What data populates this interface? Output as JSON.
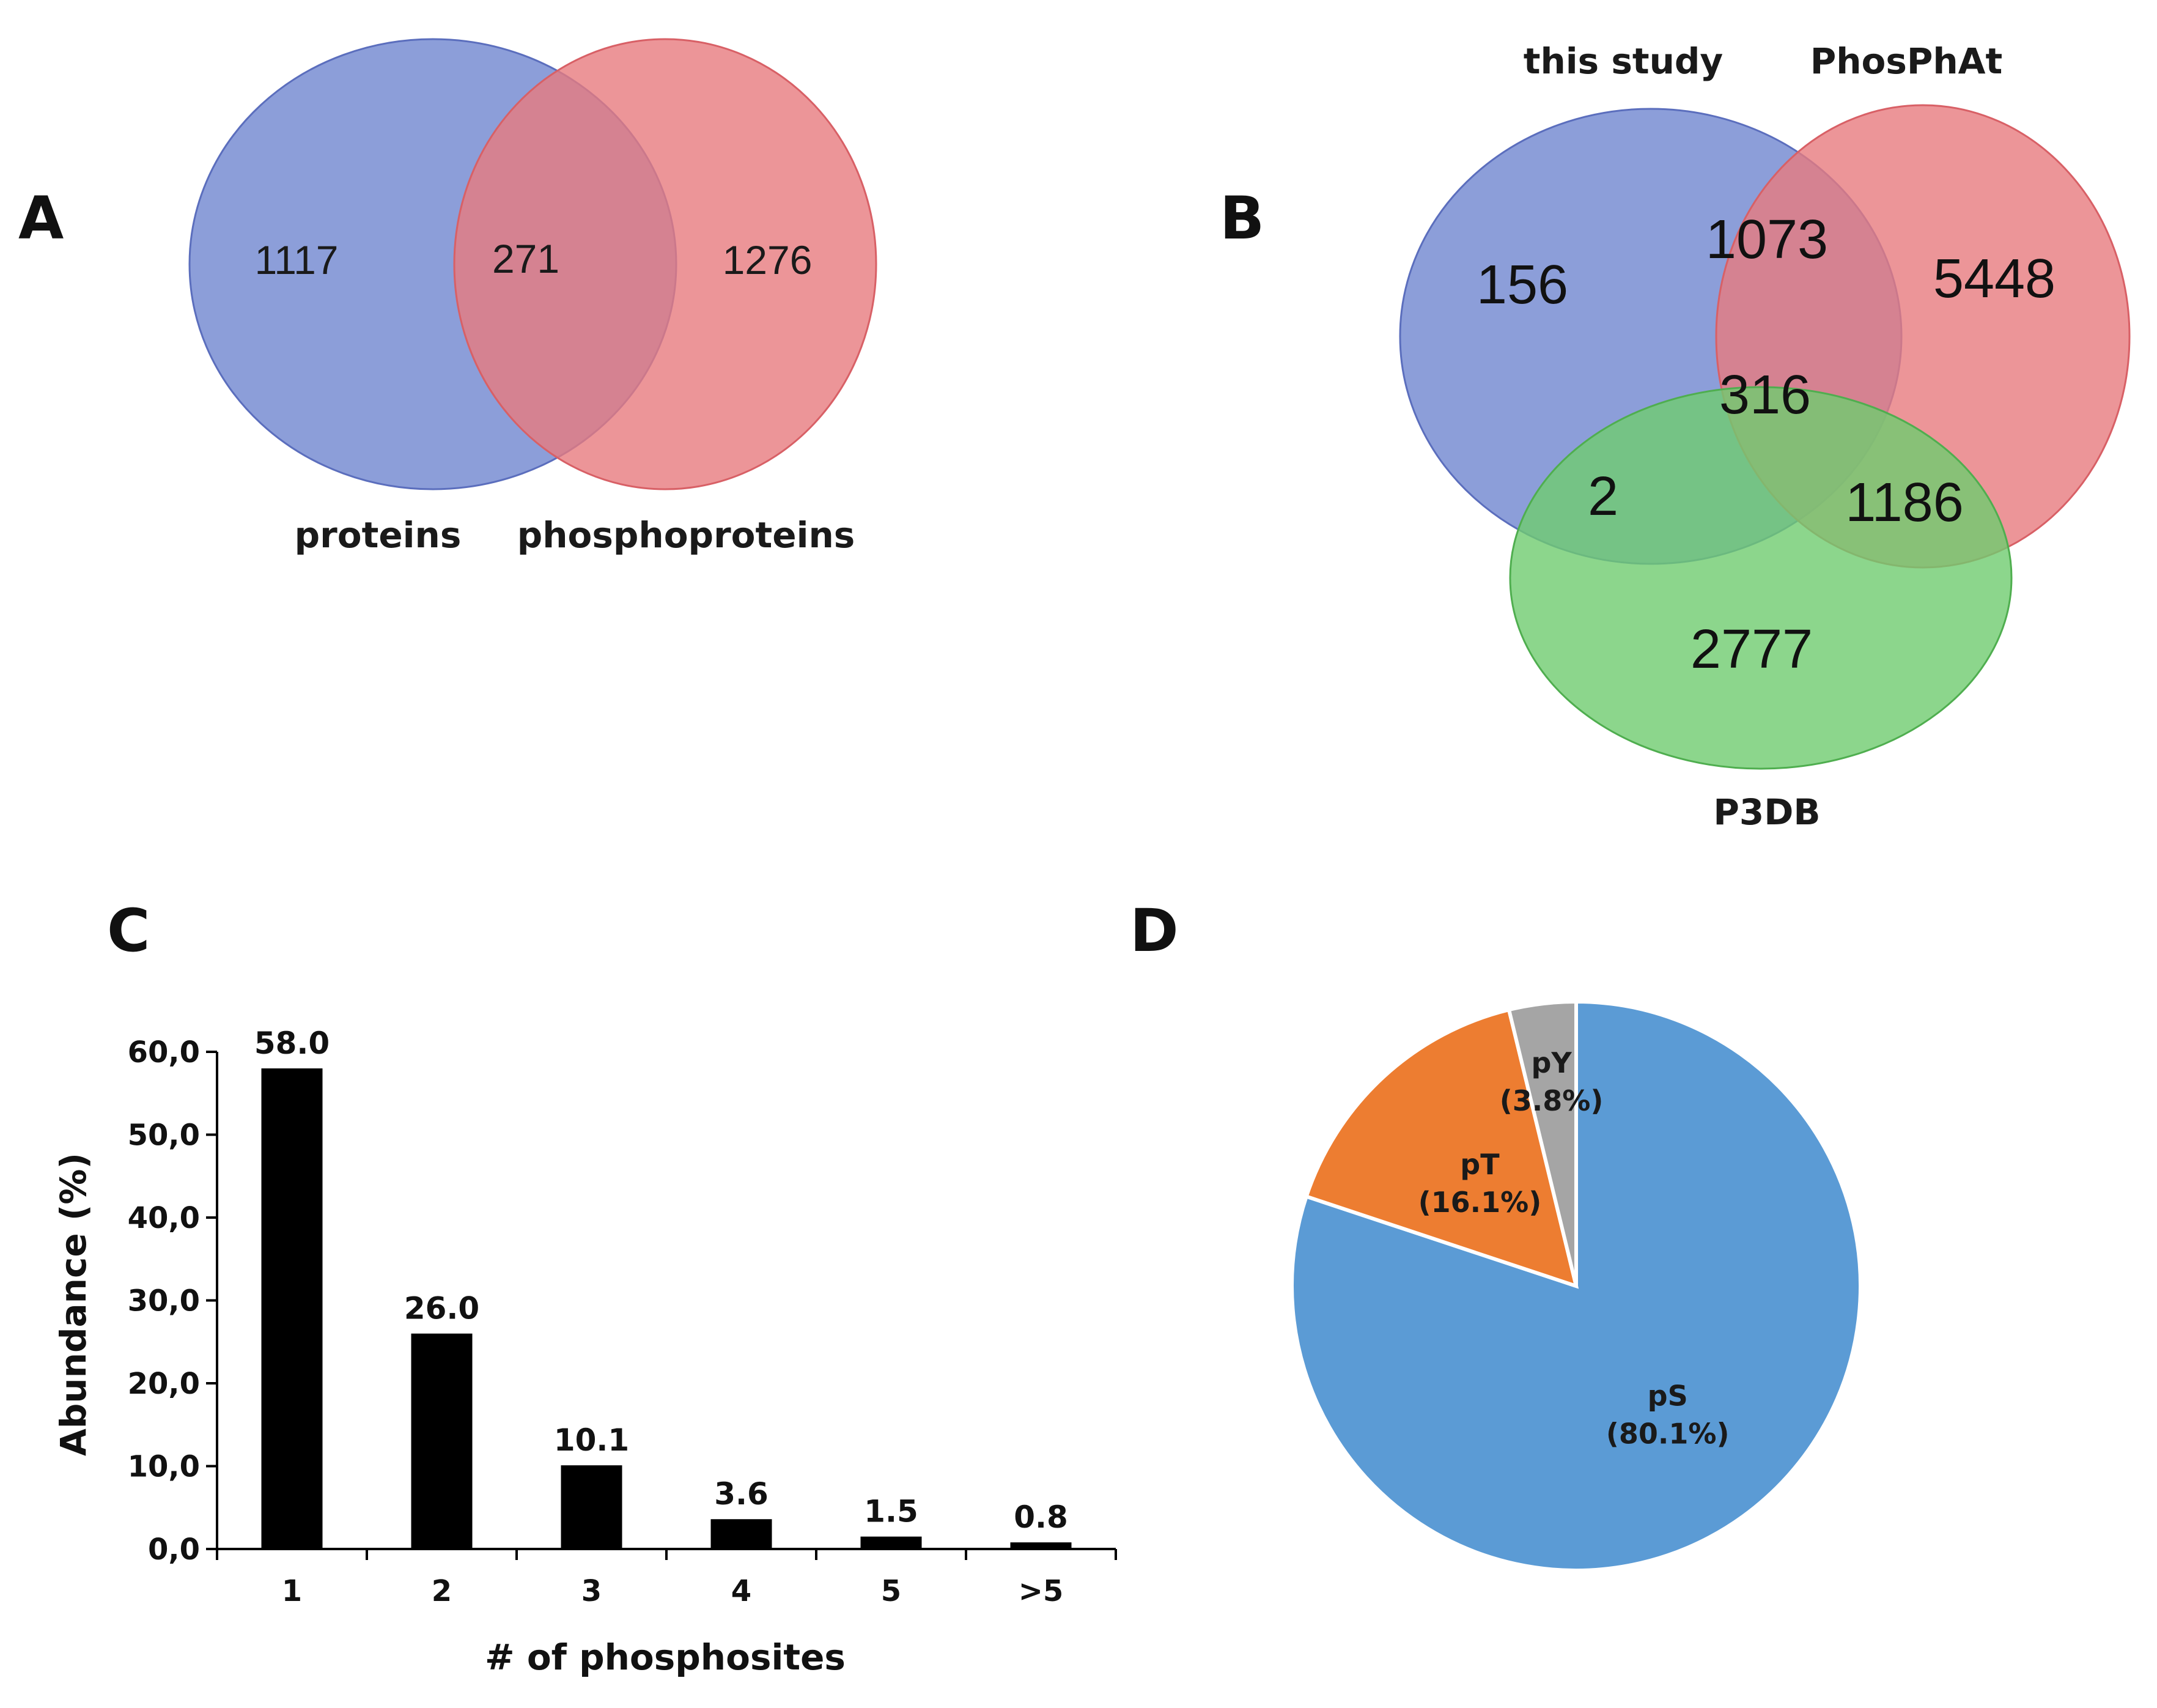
{
  "chart_data": [
    {
      "panel": "A",
      "type": "venn",
      "sets": [
        "proteins",
        "phosphoproteins"
      ],
      "colors": [
        "#6f86d0",
        "#e77a7e"
      ],
      "regions": [
        {
          "sets": [
            "proteins"
          ],
          "value": 1117
        },
        {
          "sets": [
            "proteins",
            "phosphoproteins"
          ],
          "value": 271
        },
        {
          "sets": [
            "phosphoproteins"
          ],
          "value": 1276
        }
      ]
    },
    {
      "panel": "B",
      "type": "venn",
      "sets": [
        "this study",
        "PhosPhAt",
        "P3DB"
      ],
      "colors": [
        "#6f86d0",
        "#e77a7e",
        "#6fcc6f"
      ],
      "regions": [
        {
          "sets": [
            "this study"
          ],
          "value": 156
        },
        {
          "sets": [
            "this study",
            "PhosPhAt"
          ],
          "value": 1073
        },
        {
          "sets": [
            "PhosPhAt"
          ],
          "value": 5448
        },
        {
          "sets": [
            "this study",
            "PhosPhAt",
            "P3DB"
          ],
          "value": 316
        },
        {
          "sets": [
            "this study",
            "P3DB"
          ],
          "value": 2
        },
        {
          "sets": [
            "PhosPhAt",
            "P3DB"
          ],
          "value": 1186
        },
        {
          "sets": [
            "P3DB"
          ],
          "value": 2777
        }
      ]
    },
    {
      "panel": "C",
      "type": "bar",
      "categories": [
        "1",
        "2",
        "3",
        "4",
        "5",
        ">5"
      ],
      "values": [
        58.0,
        26.0,
        10.1,
        3.6,
        1.5,
        0.8
      ],
      "value_labels": [
        "58.0",
        "26.0",
        "10.1",
        "3.6",
        "1.5",
        "0.8"
      ],
      "xlabel": "# of phosphosites",
      "ylabel": "Abundance (%)",
      "ylim": [
        0,
        60
      ],
      "yticks": [
        "0,0",
        "10,0",
        "20,0",
        "30,0",
        "40,0",
        "50,0",
        "60,0"
      ],
      "bar_color": "#000000",
      "grid": false
    },
    {
      "panel": "D",
      "type": "pie",
      "start_angle_deg": 0,
      "direction": "clockwise",
      "slices": [
        {
          "name": "pS",
          "label": "(80.1%)",
          "value": 80.1,
          "color": "#5b9bd5"
        },
        {
          "name": "pT",
          "label": "(16.1%)",
          "value": 16.1,
          "color": "#ed7d31"
        },
        {
          "name": "pY",
          "label": "(3.8%)",
          "value": 3.8,
          "color": "#a5a5a5"
        }
      ]
    }
  ],
  "panels": {
    "a": "A",
    "b": "B",
    "c": "C",
    "d": "D"
  }
}
